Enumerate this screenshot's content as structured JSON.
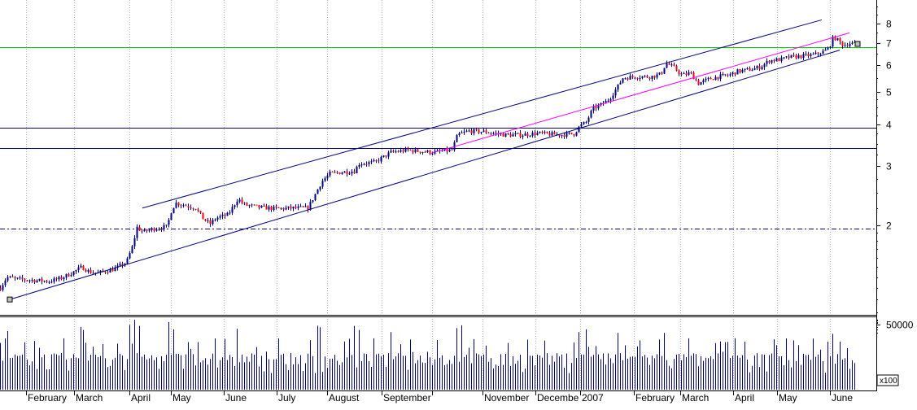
{
  "chart_data": {
    "type": "candlestick",
    "price_scale": "log",
    "price_ticks": [
      {
        "label": "8",
        "value": 8
      },
      {
        "label": "7",
        "value": 7
      },
      {
        "label": "6",
        "value": 6
      },
      {
        "label": "5",
        "value": 5
      },
      {
        "label": "4",
        "value": 4
      },
      {
        "label": "3",
        "value": 3
      },
      {
        "label": "2",
        "value": 2
      }
    ],
    "volume_scale": "log",
    "volume_ticks": [
      {
        "label": "50000",
        "value": 50000
      }
    ],
    "volume_unit_label": "x100",
    "x_range": [
      0,
      1077
    ],
    "price_range": [
      1.08,
      9.4
    ],
    "volume_range": [
      30,
      110000
    ],
    "month_labels": [
      {
        "label": "February",
        "x": 32
      },
      {
        "label": "March",
        "x": 91
      },
      {
        "label": "April",
        "x": 159
      },
      {
        "label": "May",
        "x": 210
      },
      {
        "label": "June",
        "x": 275
      },
      {
        "label": "July",
        "x": 340
      },
      {
        "label": "August",
        "x": 402
      },
      {
        "label": "September",
        "x": 469
      },
      {
        "label": "November",
        "x": 593
      },
      {
        "label": "Decembe",
        "x": 658
      },
      {
        "label": "2007",
        "x": 713
      },
      {
        "label": "February",
        "x": 779
      },
      {
        "label": "March",
        "x": 836
      },
      {
        "label": "April",
        "x": 901
      },
      {
        "label": "May",
        "x": 955
      },
      {
        "label": "June",
        "x": 1020
      }
    ],
    "month_gridlines_x": [
      32,
      91,
      159,
      210,
      275,
      340,
      402,
      469,
      531,
      593,
      658,
      713,
      779,
      836,
      901,
      955,
      1020
    ],
    "horizontal_lines": [
      {
        "price": 6.8,
        "color": "#00cc00",
        "style": "solid"
      },
      {
        "price": 3.9,
        "color": "#000080",
        "style": "solid"
      },
      {
        "price": 3.4,
        "color": "#000080",
        "style": "solid"
      },
      {
        "price": 1.95,
        "color": "#000080",
        "style": "dashdot"
      }
    ],
    "trend_lines": [
      {
        "color": "#000080",
        "x1": 12,
        "p1": 1.2,
        "x2": 1032,
        "p2": 6.66
      },
      {
        "color": "#000080",
        "x1": 175,
        "p1": 2.25,
        "x2": 1010,
        "p2": 8.2
      },
      {
        "color": "#ff00ff",
        "x1": 530,
        "p1": 3.28,
        "x2": 1044,
        "p2": 7.5
      }
    ],
    "markers": [
      {
        "x": 12,
        "price": 1.2
      },
      {
        "x": 1054,
        "price": 6.95
      }
    ],
    "price_path": [
      [
        0,
        1.3
      ],
      [
        8,
        1.4
      ],
      [
        20,
        1.38
      ],
      [
        40,
        1.37
      ],
      [
        60,
        1.36
      ],
      [
        75,
        1.39
      ],
      [
        90,
        1.45
      ],
      [
        100,
        1.5
      ],
      [
        110,
        1.45
      ],
      [
        120,
        1.44
      ],
      [
        140,
        1.48
      ],
      [
        155,
        1.55
      ],
      [
        162,
        1.72
      ],
      [
        168,
        1.97
      ],
      [
        175,
        1.91
      ],
      [
        188,
        1.95
      ],
      [
        205,
        1.98
      ],
      [
        210,
        2.2
      ],
      [
        215,
        2.33
      ],
      [
        225,
        2.3
      ],
      [
        240,
        2.25
      ],
      [
        250,
        2.08
      ],
      [
        258,
        2.02
      ],
      [
        265,
        2.1
      ],
      [
        280,
        2.15
      ],
      [
        292,
        2.4
      ],
      [
        300,
        2.3
      ],
      [
        320,
        2.26
      ],
      [
        340,
        2.24
      ],
      [
        360,
        2.25
      ],
      [
        378,
        2.25
      ],
      [
        388,
        2.5
      ],
      [
        395,
        2.7
      ],
      [
        405,
        2.85
      ],
      [
        420,
        2.88
      ],
      [
        436,
        2.9
      ],
      [
        440,
        3.05
      ],
      [
        460,
        3.08
      ],
      [
        480,
        3.3
      ],
      [
        500,
        3.35
      ],
      [
        530,
        3.3
      ],
      [
        555,
        3.35
      ],
      [
        562,
        3.72
      ],
      [
        575,
        3.82
      ],
      [
        595,
        3.8
      ],
      [
        620,
        3.72
      ],
      [
        640,
        3.72
      ],
      [
        660,
        3.76
      ],
      [
        690,
        3.72
      ],
      [
        705,
        3.75
      ],
      [
        712,
        3.95
      ],
      [
        720,
        4.06
      ],
      [
        728,
        4.45
      ],
      [
        740,
        4.6
      ],
      [
        748,
        4.75
      ],
      [
        758,
        5.15
      ],
      [
        765,
        5.5
      ],
      [
        780,
        5.55
      ],
      [
        800,
        5.55
      ],
      [
        812,
        5.65
      ],
      [
        818,
        6.1
      ],
      [
        828,
        5.9
      ],
      [
        838,
        5.6
      ],
      [
        848,
        5.7
      ],
      [
        858,
        5.3
      ],
      [
        870,
        5.45
      ],
      [
        882,
        5.55
      ],
      [
        895,
        5.6
      ],
      [
        905,
        5.75
      ],
      [
        925,
        5.85
      ],
      [
        935,
        5.95
      ],
      [
        945,
        6.2
      ],
      [
        960,
        6.25
      ],
      [
        970,
        6.35
      ],
      [
        985,
        6.4
      ],
      [
        1000,
        6.45
      ],
      [
        1012,
        6.6
      ],
      [
        1018,
        6.75
      ],
      [
        1024,
        7.3
      ],
      [
        1030,
        7.1
      ],
      [
        1036,
        6.88
      ],
      [
        1044,
        6.98
      ],
      [
        1052,
        6.95
      ]
    ],
    "volume_spikes": [
      {
        "x": 10,
        "v": 25000
      },
      {
        "x": 100,
        "v": 40000
      },
      {
        "x": 103,
        "v": 28000
      },
      {
        "x": 160,
        "v": 50000
      },
      {
        "x": 164,
        "v": 90000
      },
      {
        "x": 170,
        "v": 45000
      },
      {
        "x": 208,
        "v": 70000
      },
      {
        "x": 212,
        "v": 30000
      },
      {
        "x": 291,
        "v": 32000
      },
      {
        "x": 390,
        "v": 46000
      },
      {
        "x": 393,
        "v": 38000
      },
      {
        "x": 436,
        "v": 45000
      },
      {
        "x": 440,
        "v": 28000
      },
      {
        "x": 481,
        "v": 22000
      },
      {
        "x": 562,
        "v": 35000
      },
      {
        "x": 566,
        "v": 48000
      },
      {
        "x": 710,
        "v": 22000
      },
      {
        "x": 720,
        "v": 30000
      },
      {
        "x": 760,
        "v": 20000
      },
      {
        "x": 815,
        "v": 20000
      },
      {
        "x": 1022,
        "v": 18000
      }
    ]
  }
}
